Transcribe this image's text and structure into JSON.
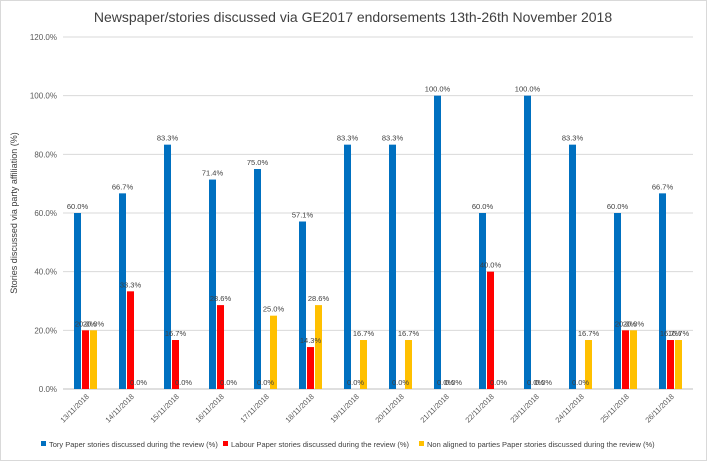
{
  "chart_data": {
    "type": "bar",
    "title": "Newspaper/stories discussed via GE2017 endorsements 13th-26th November 2018",
    "xlabel": "",
    "ylabel": "Stories discussed via party affiliation (%)",
    "ylim": [
      0,
      120
    ],
    "yticks": [
      0,
      20,
      40,
      60,
      80,
      100,
      120
    ],
    "ytick_labels": [
      "0.0%",
      "20.0%",
      "40.0%",
      "60.0%",
      "80.0%",
      "100.0%",
      "120.0%"
    ],
    "grid": true,
    "legend_position": "bottom",
    "categories": [
      "13/11/2018",
      "14/11/2018",
      "15/11/2018",
      "16/11/2018",
      "17/11/2018",
      "18/11/2018",
      "19/11/2018",
      "20/11/2018",
      "21/11/2018",
      "22/11/2018",
      "23/11/2018",
      "24/11/2018",
      "25/11/2018",
      "26/11/2018"
    ],
    "series": [
      {
        "name": "Tory Paper stories discussed during the review (%)",
        "color": "#0070c0",
        "values": [
          60.0,
          66.7,
          83.3,
          71.4,
          75.0,
          57.1,
          83.3,
          83.3,
          100.0,
          60.0,
          100.0,
          83.3,
          60.0,
          66.7
        ],
        "labels": [
          "60.0%",
          "66.7%",
          "83.3%",
          "71.4%",
          "75.0%",
          "57.1%",
          "83.3%",
          "83.3%",
          "100.0%",
          "60.0%",
          "100.0%",
          "83.3%",
          "60.0%",
          "66.7%"
        ]
      },
      {
        "name": "Labour Paper stories discussed during the review (%)",
        "color": "#ff0000",
        "values": [
          20.0,
          33.3,
          16.7,
          28.6,
          0.0,
          14.3,
          0.0,
          0.0,
          0.0,
          40.0,
          0.0,
          0.0,
          20.0,
          16.7
        ],
        "labels": [
          "20.0%",
          "33.3%",
          "16.7%",
          "28.6%",
          "0.0%",
          "14.3%",
          "0.0%",
          "0.0%",
          "0.0%",
          "40.0%",
          "0.0%",
          "0.0%",
          "20.0%",
          "16.7%"
        ]
      },
      {
        "name": "Non aligned to parties Paper stories discussed during the review (%)",
        "color": "#ffc000",
        "values": [
          20.0,
          0.0,
          0.0,
          0.0,
          25.0,
          28.6,
          16.7,
          16.7,
          0.0,
          0.0,
          0.0,
          16.7,
          20.0,
          16.7
        ],
        "labels": [
          "20.0%",
          "0.0%",
          "0.0%",
          "0.0%",
          "25.0%",
          "28.6%",
          "16.7%",
          "16.7%",
          "0.0%",
          "0.0%",
          "0.0%",
          "16.7%",
          "20.0%",
          "16.7%"
        ]
      }
    ]
  }
}
